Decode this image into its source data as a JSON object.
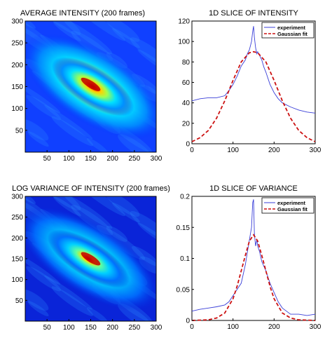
{
  "chart_data": [
    {
      "type": "heatmap",
      "title": "AVERAGE INTENSITY (200 frames)",
      "xticks": [
        50,
        100,
        150,
        200,
        250,
        300
      ],
      "yticks": [
        50,
        100,
        150,
        200,
        250,
        300
      ],
      "xlim": [
        0,
        300
      ],
      "ylim": [
        0,
        300
      ],
      "colormap": "jet",
      "feature": {
        "center": [
          155,
          150
        ],
        "orientation": "diagonal, upper-left to lower-right",
        "hotspot": [
          150,
          155
        ]
      }
    },
    {
      "type": "line",
      "title": "1D SLICE OF INTENSITY",
      "xlim": [
        0,
        300
      ],
      "ylim": [
        0,
        120
      ],
      "xticks": [
        0,
        100,
        200,
        300
      ],
      "yticks": [
        0,
        20,
        40,
        60,
        80,
        100,
        120
      ],
      "legend_position": "top-right",
      "series": [
        {
          "name": "experiment",
          "color": "#3a3fd8",
          "style": "solid",
          "x": [
            0,
            20,
            40,
            60,
            80,
            90,
            100,
            110,
            120,
            130,
            135,
            140,
            145,
            148,
            150,
            152,
            155,
            158,
            160,
            165,
            170,
            175,
            180,
            190,
            200,
            210,
            220,
            240,
            260,
            280,
            300
          ],
          "y": [
            42,
            44,
            45,
            45,
            47,
            52,
            58,
            66,
            76,
            82,
            88,
            92,
            100,
            110,
            115,
            104,
            94,
            88,
            90,
            86,
            82,
            75,
            70,
            58,
            50,
            44,
            40,
            36,
            33,
            31,
            30
          ]
        },
        {
          "name": "Gaussian fit",
          "color": "#cc1111",
          "style": "dashed",
          "x": [
            0,
            20,
            40,
            60,
            80,
            100,
            120,
            140,
            150,
            160,
            180,
            200,
            220,
            240,
            260,
            280,
            300
          ],
          "y": [
            2,
            6,
            13,
            25,
            42,
            62,
            80,
            89,
            90,
            89,
            80,
            62,
            42,
            25,
            13,
            6,
            2
          ]
        }
      ]
    },
    {
      "type": "heatmap",
      "title": "LOG VARIANCE OF INTENSITY (200 frames)",
      "xticks": [
        50,
        100,
        150,
        200,
        250,
        300
      ],
      "yticks": [
        50,
        100,
        150,
        200,
        250,
        300
      ],
      "xlim": [
        0,
        300
      ],
      "ylim": [
        0,
        300
      ],
      "colormap": "jet",
      "feature": {
        "center": [
          145,
          150
        ],
        "orientation": "diagonal, upper-left to lower-right",
        "hotspot": [
          150,
          150
        ]
      }
    },
    {
      "type": "line",
      "title": "1D SLICE OF VARIANCE",
      "xlim": [
        0,
        300
      ],
      "ylim": [
        0,
        0.2
      ],
      "xticks": [
        0,
        100,
        200,
        300
      ],
      "yticks": [
        0,
        0.05,
        0.1,
        0.15,
        0.2
      ],
      "legend_position": "top-right",
      "series": [
        {
          "name": "experiment",
          "color": "#3a3fd8",
          "style": "solid",
          "x": [
            0,
            20,
            40,
            60,
            80,
            90,
            100,
            110,
            120,
            130,
            135,
            140,
            145,
            148,
            150,
            152,
            155,
            158,
            160,
            165,
            170,
            180,
            190,
            200,
            210,
            220,
            230,
            240,
            260,
            280,
            300
          ],
          "y": [
            0.015,
            0.018,
            0.02,
            0.022,
            0.025,
            0.03,
            0.04,
            0.05,
            0.06,
            0.09,
            0.11,
            0.13,
            0.15,
            0.19,
            0.195,
            0.14,
            0.12,
            0.13,
            0.12,
            0.11,
            0.095,
            0.08,
            0.06,
            0.045,
            0.03,
            0.02,
            0.015,
            0.01,
            0.01,
            0.008,
            0.01
          ]
        },
        {
          "name": "Gaussian fit",
          "color": "#cc1111",
          "style": "dashed",
          "x": [
            0,
            40,
            60,
            80,
            100,
            110,
            120,
            130,
            140,
            150,
            160,
            170,
            180,
            190,
            200,
            220,
            240,
            260,
            300
          ],
          "y": [
            0,
            0.001,
            0.004,
            0.012,
            0.035,
            0.055,
            0.08,
            0.105,
            0.128,
            0.138,
            0.128,
            0.105,
            0.08,
            0.055,
            0.035,
            0.012,
            0.004,
            0.001,
            0
          ]
        }
      ]
    }
  ]
}
